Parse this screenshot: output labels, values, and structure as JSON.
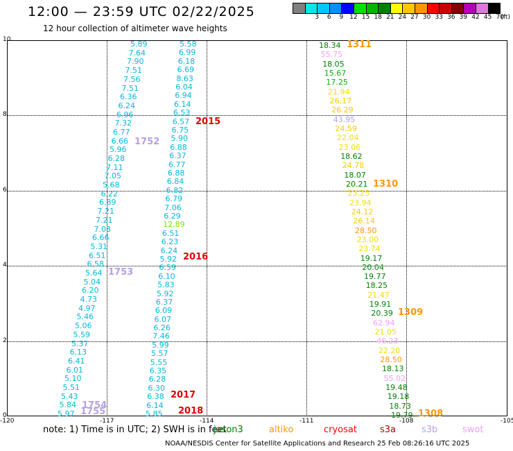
{
  "header": {
    "title": "12:00 — 23:59 UTC 02/22/2025",
    "subtitle": "12 hour collection of altimeter wave heights"
  },
  "scale": {
    "unit": "(ft)",
    "items": [
      {
        "label": "",
        "color": "#808080"
      },
      {
        "label": "3",
        "color": "#00e8e8"
      },
      {
        "label": "6",
        "color": "#00c8ff"
      },
      {
        "label": "9",
        "color": "#0090ff"
      },
      {
        "label": "12",
        "color": "#0000ff"
      },
      {
        "label": "15",
        "color": "#00e000"
      },
      {
        "label": "18",
        "color": "#00b400"
      },
      {
        "label": "21",
        "color": "#008000"
      },
      {
        "label": "24",
        "color": "#ffff00"
      },
      {
        "label": "27",
        "color": "#ffc800"
      },
      {
        "label": "30",
        "color": "#ff9600"
      },
      {
        "label": "33",
        "color": "#ff0000"
      },
      {
        "label": "36",
        "color": "#c80000"
      },
      {
        "label": "39",
        "color": "#800000"
      },
      {
        "label": "42",
        "color": "#b400b4"
      },
      {
        "label": "45",
        "color": "#dc78dc"
      },
      {
        "label": "70",
        "color": "#000000"
      }
    ]
  },
  "axes": {
    "y_ticks": [
      "10",
      "8",
      "6",
      "4",
      "2",
      "0"
    ],
    "x_ticks": [
      "-120",
      "-117",
      "-114",
      "-111",
      "-108",
      "-105"
    ]
  },
  "tracks": [
    {
      "values": [
        "5.89",
        "7.64",
        "7.90",
        "7.51",
        "7.56",
        "7.51",
        "6.36",
        "6.24",
        "6.96",
        "7.32",
        "6.77",
        "6.66",
        "5.96",
        "6.28",
        "7.11",
        "7.05",
        "5.68",
        "6.22",
        "6.89",
        "7.21",
        "7.21",
        "7.08",
        "6.66",
        "5.31",
        "6.51",
        "6.58",
        "5.64",
        "5.04",
        "6.20",
        "4.73",
        "4.97",
        "5.46",
        "5.06",
        "5.59",
        "5.37",
        "6.13",
        "6.41",
        "6.01",
        "5.10",
        "5.51",
        "5.43",
        "5.84",
        "5.97"
      ]
    },
    {
      "values": [
        "5.58",
        "6.99",
        "6.18",
        "6.69",
        "8.63",
        "6.04",
        "6.94",
        "6.14",
        "6.53",
        "6.57",
        "6.75",
        "5.90",
        "6.88",
        "6.37",
        "6.77",
        "6.88",
        "6.84",
        "6.82",
        "6.79",
        "7.06",
        "6.29",
        "12.89",
        "6.51",
        "6.23",
        "6.24",
        "5.92",
        "6.59",
        "6.10",
        "5.83",
        "5.92",
        "6.37",
        "6.09",
        "6.07",
        "6.26",
        "7.46",
        "5.99",
        "5.57",
        "5.55",
        "6.35",
        "6.28",
        "6.30",
        "6.38",
        "6.14",
        "5.85"
      ]
    },
    {
      "values": [
        "18.34",
        "55.75",
        "18.05",
        "15.67",
        "17.25",
        "21.94",
        "26.17",
        "26.29",
        "43.95",
        "24.59",
        "22.04",
        "23.06",
        "18.62",
        "24.78",
        "18.07",
        "20.21",
        "23.25",
        "23.94",
        "24.12",
        "26.14",
        "28.50",
        "23.00",
        "23.74",
        "19.17",
        "20.04",
        "19.77",
        "18.25",
        "21.47",
        "19.91",
        "20.39",
        "62.94",
        "21.05",
        "46.23",
        "22.20",
        "28.50",
        "18.13",
        "55.02",
        "19.48",
        "19.18",
        "18.73",
        "19.79"
      ]
    }
  ],
  "passes": [
    {
      "label": "2015"
    },
    {
      "label": "1752"
    },
    {
      "label": "2016"
    },
    {
      "label": "1753"
    },
    {
      "label": "2017"
    },
    {
      "label": "2018"
    },
    {
      "label": "1754"
    },
    {
      "label": "1755"
    },
    {
      "label": "1311"
    },
    {
      "label": "1310"
    },
    {
      "label": "1309"
    },
    {
      "label": "1308"
    }
  ],
  "footer": {
    "note": "note:  1) Time is in UTC;  2) SWH is in feet",
    "satellites": [
      {
        "label": "jason3",
        "color": "#008000"
      },
      {
        "label": "altiko",
        "color": "#ff9600"
      },
      {
        "label": "cryosat",
        "color": "#ff0000"
      },
      {
        "label": "s3a",
        "color": "#b40000"
      },
      {
        "label": "s3b",
        "color": "#b4a0e6"
      },
      {
        "label": "swot",
        "color": "#f0a0f0"
      }
    ],
    "credit": "NOAA/NESDIS Center for Satellite Applications and Research    25 Feb 08:26:16 UTC 2025"
  }
}
